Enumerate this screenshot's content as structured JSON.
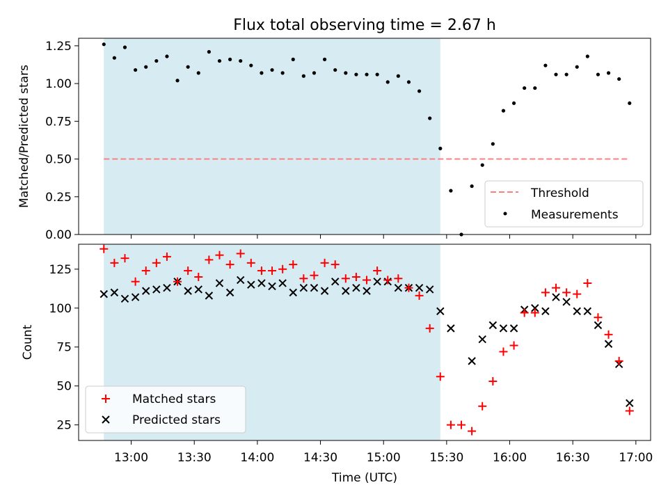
{
  "chart_data": [
    {
      "type": "scatter",
      "title": "Flux total observing time = 2.67 h",
      "ylabel": "Matched/Predicted stars",
      "xlabel": "",
      "ylim": [
        0.0,
        1.3
      ],
      "yticks": [
        "0.00",
        "0.25",
        "0.50",
        "0.75",
        "1.00",
        "1.25"
      ],
      "xlim": [
        "12:35",
        "17:07"
      ],
      "shaded_interval": {
        "start": "12:47",
        "end": "15:27",
        "color": "#add8e6"
      },
      "threshold": {
        "name": "Threshold",
        "value": 0.5,
        "x_start": "12:47",
        "x_end": "16:57",
        "color": "#ff7f7f",
        "style": "dashed"
      },
      "legend_position": "lower right",
      "series": [
        {
          "name": "Measurements",
          "marker": "dot",
          "color": "#000000",
          "x": [
            "12:47",
            "12:52",
            "12:57",
            "13:02",
            "13:07",
            "13:12",
            "13:17",
            "13:22",
            "13:27",
            "13:32",
            "13:37",
            "13:42",
            "13:47",
            "13:52",
            "13:57",
            "14:02",
            "14:07",
            "14:12",
            "14:17",
            "14:22",
            "14:27",
            "14:32",
            "14:37",
            "14:42",
            "14:47",
            "14:52",
            "14:57",
            "15:02",
            "15:07",
            "15:12",
            "15:17",
            "15:22",
            "15:27",
            "15:32",
            "15:37",
            "15:42",
            "15:47",
            "15:52",
            "15:57",
            "16:02",
            "16:07",
            "16:12",
            "16:17",
            "16:22",
            "16:27",
            "16:32",
            "16:37",
            "16:42",
            "16:47",
            "16:52",
            "16:57"
          ],
          "y": [
            1.26,
            1.17,
            1.24,
            1.09,
            1.11,
            1.15,
            1.18,
            1.02,
            1.11,
            1.07,
            1.21,
            1.15,
            1.16,
            1.15,
            1.12,
            1.07,
            1.09,
            1.07,
            1.16,
            1.05,
            1.07,
            1.16,
            1.09,
            1.07,
            1.06,
            1.06,
            1.06,
            1.01,
            1.05,
            1.01,
            0.95,
            0.77,
            0.57,
            0.29,
            0.0,
            0.32,
            0.46,
            0.6,
            0.82,
            0.87,
            0.97,
            0.97,
            1.12,
            1.06,
            1.06,
            1.11,
            1.18,
            1.06,
            1.07,
            1.03,
            0.87
          ]
        }
      ]
    },
    {
      "type": "scatter",
      "title": "",
      "ylabel": "Count",
      "xlabel": "Time (UTC)",
      "ylim": [
        15,
        141
      ],
      "yticks": [
        "25",
        "50",
        "75",
        "100",
        "125"
      ],
      "xlim": [
        "12:35",
        "17:07"
      ],
      "xticks": [
        "13:00",
        "13:30",
        "14:00",
        "14:30",
        "15:00",
        "15:30",
        "16:00",
        "16:30",
        "17:00"
      ],
      "shaded_interval": {
        "start": "12:47",
        "end": "15:27",
        "color": "#add8e6"
      },
      "legend_position": "lower left",
      "series": [
        {
          "name": "Matched stars",
          "marker": "plus",
          "color": "#ff0000",
          "x": [
            "12:47",
            "12:52",
            "12:57",
            "13:02",
            "13:07",
            "13:12",
            "13:17",
            "13:22",
            "13:27",
            "13:32",
            "13:37",
            "13:42",
            "13:47",
            "13:52",
            "13:57",
            "14:02",
            "14:07",
            "14:12",
            "14:17",
            "14:22",
            "14:27",
            "14:32",
            "14:37",
            "14:42",
            "14:47",
            "14:52",
            "14:57",
            "15:02",
            "15:07",
            "15:12",
            "15:17",
            "15:22",
            "15:27",
            "15:32",
            "15:37",
            "15:42",
            "15:47",
            "15:52",
            "15:57",
            "16:02",
            "16:07",
            "16:12",
            "16:17",
            "16:22",
            "16:27",
            "16:32",
            "16:37",
            "16:42",
            "16:47",
            "16:52",
            "16:57"
          ],
          "y": [
            138,
            129,
            132,
            117,
            124,
            129,
            133,
            117,
            124,
            120,
            131,
            134,
            128,
            135,
            129,
            124,
            124,
            125,
            128,
            119,
            121,
            129,
            128,
            119,
            120,
            118,
            124,
            118,
            119,
            113,
            108,
            87,
            56,
            25,
            25,
            21,
            37,
            53,
            72,
            76,
            97,
            97,
            110,
            113,
            110,
            109,
            116,
            94,
            83,
            66,
            34
          ]
        },
        {
          "name": "Predicted stars",
          "marker": "x",
          "color": "#000000",
          "x": [
            "12:47",
            "12:52",
            "12:57",
            "13:02",
            "13:07",
            "13:12",
            "13:17",
            "13:22",
            "13:27",
            "13:32",
            "13:37",
            "13:42",
            "13:47",
            "13:52",
            "13:57",
            "14:02",
            "14:07",
            "14:12",
            "14:17",
            "14:22",
            "14:27",
            "14:32",
            "14:37",
            "14:42",
            "14:47",
            "14:52",
            "14:57",
            "15:02",
            "15:07",
            "15:12",
            "15:17",
            "15:22",
            "15:27",
            "15:32",
            "15:42",
            "15:47",
            "15:52",
            "15:57",
            "16:02",
            "16:07",
            "16:12",
            "16:17",
            "16:22",
            "16:27",
            "16:32",
            "16:37",
            "16:42",
            "16:47",
            "16:52",
            "16:57"
          ],
          "y": [
            109,
            110,
            106,
            107,
            111,
            112,
            113,
            117,
            111,
            112,
            108,
            116,
            110,
            118,
            115,
            116,
            114,
            116,
            110,
            113,
            113,
            111,
            117,
            111,
            113,
            111,
            117,
            117,
            113,
            113,
            113,
            112,
            98,
            87,
            66,
            80,
            89,
            87,
            87,
            99,
            100,
            98,
            107,
            104,
            98,
            98,
            89,
            77,
            64,
            39
          ]
        }
      ]
    }
  ]
}
